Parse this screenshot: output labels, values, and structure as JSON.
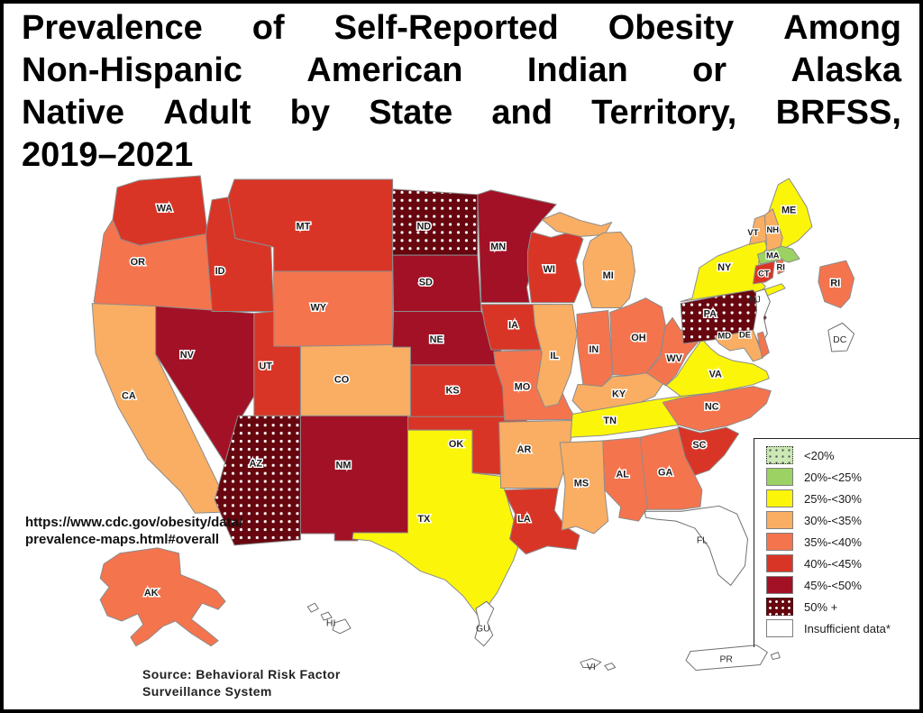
{
  "title": {
    "lines": [
      "Prevalence of Self-Reported Obesity Among",
      "Non-Hispanic American Indian or Alaska",
      "Native Adult by State and Territory, BRFSS,",
      "2019–2021"
    ]
  },
  "url_note": {
    "lines": [
      "https://www.cdc.gov/obesity/data/",
      "prevalence-maps.html#overall"
    ]
  },
  "source_note": {
    "lines": [
      "Source: Behavioral Risk Factor",
      "Surveillance System"
    ]
  },
  "colors": {
    "background": "#FFFFFF",
    "frame": "#000000",
    "state_border": "#8C8C8C",
    "label_text": "#1A1A1A"
  },
  "legend": {
    "items": [
      {
        "key": "lt20",
        "label": "<20%",
        "color": "#CBE8B5",
        "pattern": "dark-dots"
      },
      {
        "key": "20-25",
        "label": "20%-<25%",
        "color": "#9CD264",
        "pattern": "solid"
      },
      {
        "key": "25-30",
        "label": "25%-<30%",
        "color": "#FBF50A",
        "pattern": "solid"
      },
      {
        "key": "30-35",
        "label": "30%-<35%",
        "color": "#F9AE63",
        "pattern": "solid"
      },
      {
        "key": "35-40",
        "label": "35%-<40%",
        "color": "#F4744E",
        "pattern": "solid"
      },
      {
        "key": "40-45",
        "label": "40%-<45%",
        "color": "#D93526",
        "pattern": "solid"
      },
      {
        "key": "45-50",
        "label": "45%-<50%",
        "color": "#A31126",
        "pattern": "solid"
      },
      {
        "key": "50plus",
        "label": "50% +",
        "color": "#67060F",
        "pattern": "white-dots"
      },
      {
        "key": "insufficient",
        "label": "Insufficient data*",
        "color": "#FFFFFF",
        "pattern": "solid"
      }
    ]
  },
  "map": {
    "states": [
      {
        "code": "WA",
        "label": "WA",
        "category": "40-45"
      },
      {
        "code": "OR",
        "label": "OR",
        "category": "35-40"
      },
      {
        "code": "CA",
        "label": "CA",
        "category": "30-35"
      },
      {
        "code": "NV",
        "label": "NV",
        "category": "45-50"
      },
      {
        "code": "ID",
        "label": "ID",
        "category": "40-45"
      },
      {
        "code": "MT",
        "label": "MT",
        "category": "40-45"
      },
      {
        "code": "WY",
        "label": "WY",
        "category": "35-40"
      },
      {
        "code": "UT",
        "label": "UT",
        "category": "40-45"
      },
      {
        "code": "CO",
        "label": "CO",
        "category": "30-35"
      },
      {
        "code": "AZ",
        "label": "AZ",
        "category": "50plus"
      },
      {
        "code": "NM",
        "label": "NM",
        "category": "45-50"
      },
      {
        "code": "ND",
        "label": "ND",
        "category": "50plus"
      },
      {
        "code": "SD",
        "label": "SD",
        "category": "45-50"
      },
      {
        "code": "NE",
        "label": "NE",
        "category": "45-50"
      },
      {
        "code": "KS",
        "label": "KS",
        "category": "40-45"
      },
      {
        "code": "OK",
        "label": "OK",
        "category": "40-45"
      },
      {
        "code": "TX",
        "label": "TX",
        "category": "25-30"
      },
      {
        "code": "MN",
        "label": "MN",
        "category": "45-50"
      },
      {
        "code": "IA",
        "label": "IA",
        "category": "40-45"
      },
      {
        "code": "MO",
        "label": "MO",
        "category": "35-40"
      },
      {
        "code": "AR",
        "label": "AR",
        "category": "30-35"
      },
      {
        "code": "LA",
        "label": "LA",
        "category": "40-45"
      },
      {
        "code": "WI",
        "label": "WI",
        "category": "40-45"
      },
      {
        "code": "IL",
        "label": "IL",
        "category": "30-35"
      },
      {
        "code": "MI",
        "label": "MI",
        "category": "30-35"
      },
      {
        "code": "IN",
        "label": "IN",
        "category": "35-40"
      },
      {
        "code": "OH",
        "label": "OH",
        "category": "35-40"
      },
      {
        "code": "KY",
        "label": "KY",
        "category": "30-35"
      },
      {
        "code": "TN",
        "label": "TN",
        "category": "25-30"
      },
      {
        "code": "MS",
        "label": "MS",
        "category": "30-35"
      },
      {
        "code": "AL",
        "label": "AL",
        "category": "35-40"
      },
      {
        "code": "GA",
        "label": "GA",
        "category": "35-40"
      },
      {
        "code": "FL",
        "label": "FL",
        "category": "insufficient"
      },
      {
        "code": "SC",
        "label": "SC",
        "category": "40-45"
      },
      {
        "code": "NC",
        "label": "NC",
        "category": "35-40"
      },
      {
        "code": "VA",
        "label": "VA",
        "category": "25-30"
      },
      {
        "code": "WV",
        "label": "WV",
        "category": "35-40"
      },
      {
        "code": "PA",
        "label": "PA",
        "category": "50plus"
      },
      {
        "code": "NY",
        "label": "NY",
        "category": "25-30"
      },
      {
        "code": "NJ",
        "label": "NJ",
        "category": "insufficient"
      },
      {
        "code": "MD",
        "label": "MD",
        "category": "30-35"
      },
      {
        "code": "DE",
        "label": "DE",
        "category": "35-40"
      },
      {
        "code": "DC",
        "label": "DC",
        "category": "insufficient"
      },
      {
        "code": "CT",
        "label": "CT",
        "category": "40-45"
      },
      {
        "code": "RI",
        "label": "RI",
        "category": "35-40"
      },
      {
        "code": "MA",
        "label": "MA",
        "category": "20-25"
      },
      {
        "code": "VT",
        "label": "VT",
        "category": "30-35"
      },
      {
        "code": "NH",
        "label": "NH",
        "category": "30-35"
      },
      {
        "code": "ME",
        "label": "ME",
        "category": "25-30"
      },
      {
        "code": "AK",
        "label": "AK",
        "category": "35-40"
      },
      {
        "code": "HI",
        "label": "HI",
        "category": "insufficient"
      },
      {
        "code": "GU",
        "label": "GU",
        "category": "insufficient"
      },
      {
        "code": "VI",
        "label": "VI",
        "category": "insufficient"
      },
      {
        "code": "PR",
        "label": "PR",
        "category": "insufficient"
      }
    ]
  },
  "chart_data": {
    "type": "choropleth",
    "title": "Prevalence of Self-Reported Obesity Among Non-Hispanic American Indian or Alaska Native Adult by State and Territory, BRFSS, 2019–2021",
    "measure": "Self-reported obesity prevalence category",
    "legend_position": "bottom-right",
    "categories": [
      "<20%",
      "20%-<25%",
      "25%-<30%",
      "30%-<35%",
      "35%-<40%",
      "40%-<45%",
      "45%-<50%",
      "50% +",
      "Insufficient data*"
    ],
    "values": {
      "WA": "40%-<45%",
      "OR": "35%-<40%",
      "CA": "30%-<35%",
      "NV": "45%-<50%",
      "ID": "40%-<45%",
      "MT": "40%-<45%",
      "WY": "35%-<40%",
      "UT": "40%-<45%",
      "CO": "30%-<35%",
      "AZ": "50% +",
      "NM": "45%-<50%",
      "ND": "50% +",
      "SD": "45%-<50%",
      "NE": "45%-<50%",
      "KS": "40%-<45%",
      "OK": "40%-<45%",
      "TX": "25%-<30%",
      "MN": "45%-<50%",
      "IA": "40%-<45%",
      "MO": "35%-<40%",
      "AR": "30%-<35%",
      "LA": "40%-<45%",
      "WI": "40%-<45%",
      "IL": "30%-<35%",
      "MI": "30%-<35%",
      "IN": "35%-<40%",
      "OH": "35%-<40%",
      "KY": "30%-<35%",
      "TN": "25%-<30%",
      "MS": "30%-<35%",
      "AL": "35%-<40%",
      "GA": "35%-<40%",
      "FL": "Insufficient data*",
      "SC": "40%-<45%",
      "NC": "35%-<40%",
      "VA": "25%-<30%",
      "WV": "35%-<40%",
      "PA": "50% +",
      "NY": "25%-<30%",
      "NJ": "Insufficient data*",
      "MD": "30%-<35%",
      "DE": "35%-<40%",
      "DC": "Insufficient data*",
      "CT": "40%-<45%",
      "RI": "35%-<40%",
      "MA": "20%-<25%",
      "VT": "30%-<35%",
      "NH": "30%-<35%",
      "ME": "25%-<30%",
      "AK": "35%-<40%",
      "HI": "Insufficient data*",
      "GU": "Insufficient data*",
      "VI": "Insufficient data*",
      "PR": "Insufficient data*"
    }
  }
}
